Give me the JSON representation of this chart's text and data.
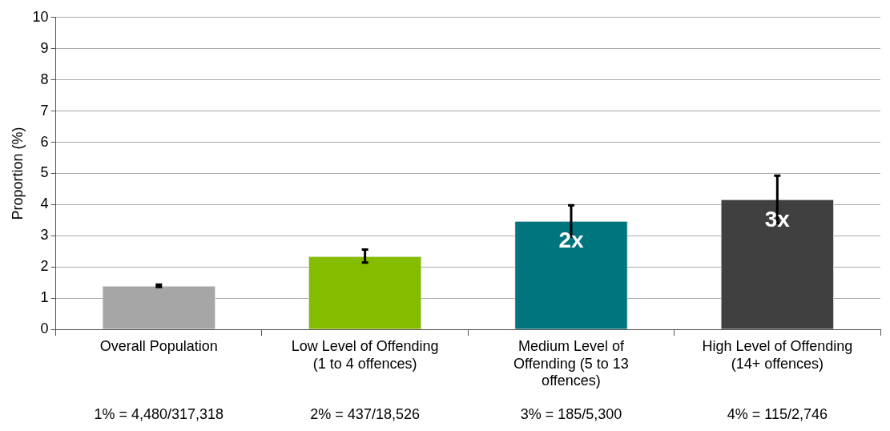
{
  "chart_data": {
    "type": "bar",
    "ylabel": "Proportion (%)",
    "categories": [
      "Overall Population",
      "Low Level of Offending (1 to 4 offences)",
      "Medium Level of Offending (5 to 13 offences)",
      "High Level of Offending (14+ offences)"
    ],
    "values": [
      1.4,
      2.35,
      3.48,
      4.17
    ],
    "colors": [
      "#a6a6a6",
      "#84bd00",
      "#00757e",
      "#404040"
    ],
    "errors": [
      0.04,
      0.21,
      0.5,
      0.76
    ],
    "ylim": [
      0,
      10
    ],
    "yticks": [
      0,
      1,
      2,
      3,
      4,
      5,
      6,
      7,
      8,
      9,
      10
    ],
    "grid": "y",
    "annotations": [
      "1% = 4,480/317,318",
      "2% = 437/18,526",
      "3% = 185/5,300",
      "4% = 115/2,746",
      "2x",
      "3x"
    ]
  }
}
